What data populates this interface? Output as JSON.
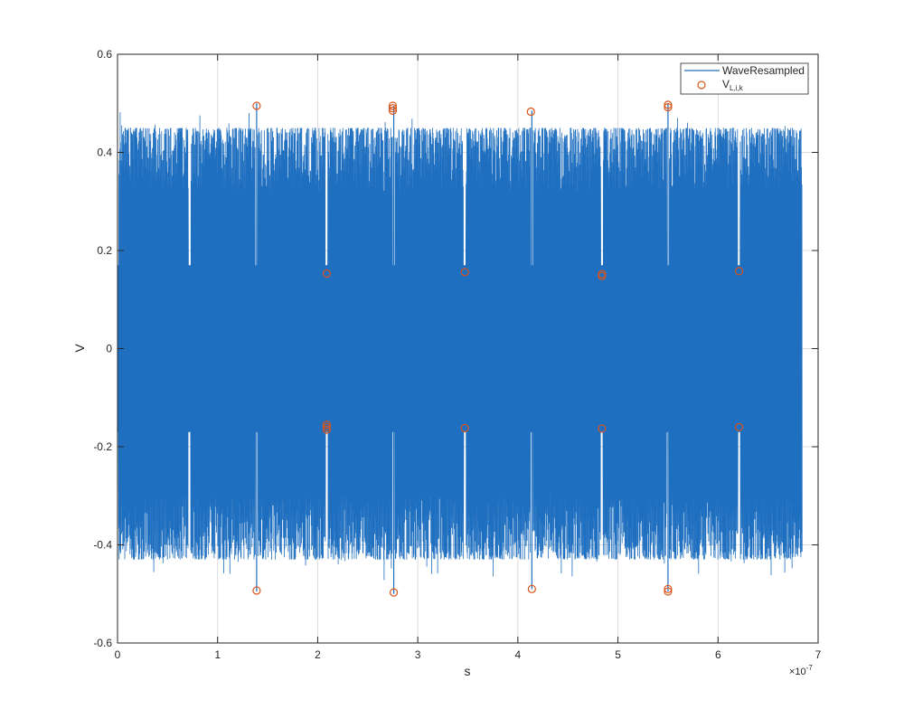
{
  "chart_data": {
    "type": "line",
    "title": "",
    "xlabel": "s",
    "ylabel": "V",
    "x_exponent_label": "×10",
    "x_exponent_power": "-7",
    "xlim": [
      0,
      7
    ],
    "ylim": [
      -0.6,
      0.6
    ],
    "x_ticks": [
      0,
      1,
      2,
      3,
      4,
      5,
      6,
      7
    ],
    "x_tick_labels": [
      "0",
      "1",
      "2",
      "3",
      "4",
      "5",
      "6",
      "7"
    ],
    "y_ticks": [
      -0.6,
      -0.4,
      -0.2,
      0,
      0.2,
      0.4,
      0.6
    ],
    "y_tick_labels": [
      "-0.6",
      "-0.4",
      "-0.2",
      "0",
      "0.2",
      "0.4",
      "0.6"
    ],
    "grid": true,
    "legend_position": "top-right",
    "colors": {
      "wave": "#1f6fc0",
      "markers": "#d95319",
      "grid": "#dcdcdc",
      "axes": "#262626"
    },
    "series": [
      {
        "name": "WaveResampled",
        "kind": "line",
        "x_range": [
          0,
          6.84
        ],
        "envelope_upper": 0.45,
        "envelope_lower": -0.43,
        "gap_times": [
          0.0,
          0.72,
          1.39,
          2.09,
          2.76,
          3.47,
          4.14,
          4.84,
          5.5,
          6.21
        ],
        "spikes": [
          {
            "x": 1.39,
            "ymax": 0.5,
            "ymin": -0.495
          },
          {
            "x": 2.76,
            "ymax": 0.495,
            "ymin": -0.5
          },
          {
            "x": 4.14,
            "ymax": 0.485,
            "ymin": -0.49
          },
          {
            "x": 5.5,
            "ymax": 0.5,
            "ymin": -0.495
          }
        ]
      },
      {
        "name": "V",
        "name_subscript": "L,i,k",
        "kind": "scatter",
        "points": [
          {
            "x": 1.39,
            "y": 0.495
          },
          {
            "x": 1.39,
            "y": -0.493
          },
          {
            "x": 2.09,
            "y": 0.153
          },
          {
            "x": 2.09,
            "y": -0.155
          },
          {
            "x": 2.09,
            "y": -0.16
          },
          {
            "x": 2.09,
            "y": -0.165
          },
          {
            "x": 2.75,
            "y": 0.495
          },
          {
            "x": 2.75,
            "y": 0.49
          },
          {
            "x": 2.75,
            "y": 0.485
          },
          {
            "x": 2.76,
            "y": -0.497
          },
          {
            "x": 3.47,
            "y": 0.156
          },
          {
            "x": 3.47,
            "y": -0.162
          },
          {
            "x": 4.13,
            "y": 0.483
          },
          {
            "x": 4.14,
            "y": -0.49
          },
          {
            "x": 4.84,
            "y": 0.152
          },
          {
            "x": 4.84,
            "y": 0.148
          },
          {
            "x": 4.84,
            "y": -0.163
          },
          {
            "x": 5.5,
            "y": 0.497
          },
          {
            "x": 5.5,
            "y": 0.492
          },
          {
            "x": 5.5,
            "y": -0.49
          },
          {
            "x": 5.5,
            "y": -0.495
          },
          {
            "x": 6.21,
            "y": 0.158
          },
          {
            "x": 6.21,
            "y": -0.16
          }
        ]
      }
    ]
  }
}
